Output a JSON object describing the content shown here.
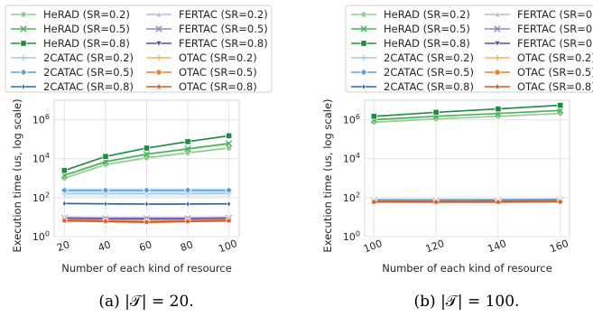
{
  "legend": [
    {
      "name": "HeRAD (SR=0.2)",
      "color": "#8fd18a",
      "marker": "circle"
    },
    {
      "name": "HeRAD (SR=0.5)",
      "color": "#4bb05c",
      "marker": "x"
    },
    {
      "name": "HeRAD (SR=0.8)",
      "color": "#1e8a3e",
      "marker": "square"
    },
    {
      "name": "2CATAC (SR=0.2)",
      "color": "#a6cbe8",
      "marker": "plus"
    },
    {
      "name": "2CATAC (SR=0.5)",
      "color": "#5c9fd6",
      "marker": "diamond"
    },
    {
      "name": "2CATAC (SR=0.8)",
      "color": "#2267b0",
      "marker": "thin_diamond"
    },
    {
      "name": "FERTAC (SR=0.2)",
      "color": "#b9b6dc",
      "marker": "triangle_up"
    },
    {
      "name": "FERTAC (SR=0.5)",
      "color": "#8e89c4",
      "marker": "x"
    },
    {
      "name": "FERTAC (SR=0.8)",
      "color": "#5a4aa0",
      "marker": "triangle_down"
    },
    {
      "name": "OTAC (SR=0.2)",
      "color": "#f6b26b",
      "marker": "plus"
    },
    {
      "name": "OTAC (SR=0.5)",
      "color": "#ef7f2a",
      "marker": "circle"
    },
    {
      "name": "OTAC (SR=0.8)",
      "color": "#d9531e",
      "marker": "star"
    }
  ],
  "chart_data": [
    {
      "type": "line",
      "caption": "(a) |𝒯| = 20.",
      "xlabel": "Number of each kind of resource",
      "ylabel": "Execution time (us, log scale)",
      "yscale": "log",
      "ylim": [
        1,
        10000000
      ],
      "yticks": [
        1,
        100,
        10000,
        1000000
      ],
      "ytick_labels": [
        "10^0",
        "10^2",
        "10^4",
        "10^6"
      ],
      "xlim": [
        15,
        105
      ],
      "x": [
        20,
        40,
        60,
        80,
        100
      ],
      "xtick_labels": [
        "20",
        "40",
        "60",
        "80",
        "100"
      ],
      "grid": true,
      "series": [
        {
          "name": "HeRAD (SR=0.2)",
          "values": [
            1000,
            5000,
            11000,
            20000,
            35000
          ],
          "band": 1.15
        },
        {
          "name": "HeRAD (SR=0.5)",
          "values": [
            1400,
            7000,
            17000,
            32000,
            60000
          ],
          "band": 1.15
        },
        {
          "name": "HeRAD (SR=0.8)",
          "values": [
            2500,
            13000,
            35000,
            75000,
            150000
          ],
          "band": 1.1
        },
        {
          "name": "2CATAC (SR=0.2)",
          "values": [
            160,
            160,
            160,
            160,
            165
          ],
          "band": 1.6
        },
        {
          "name": "2CATAC (SR=0.5)",
          "values": [
            240,
            240,
            240,
            240,
            240
          ],
          "band": 1.3
        },
        {
          "name": "2CATAC (SR=0.8)",
          "values": [
            50,
            48,
            47,
            47,
            48
          ],
          "band": 1.1
        },
        {
          "name": "FERTAC (SR=0.2)",
          "values": [
            10,
            9.5,
            9.5,
            9.5,
            10
          ],
          "band": 1.25
        },
        {
          "name": "FERTAC (SR=0.5)",
          "values": [
            9,
            8.5,
            8.5,
            8.5,
            9
          ],
          "band": 1.2
        },
        {
          "name": "FERTAC (SR=0.8)",
          "values": [
            8.5,
            8,
            8,
            8,
            8.5
          ],
          "band": 1.2
        },
        {
          "name": "OTAC (SR=0.2)",
          "values": [
            7.5,
            7,
            7,
            7,
            7.5
          ],
          "band": 1.2
        },
        {
          "name": "OTAC (SR=0.5)",
          "values": [
            7,
            6.5,
            6,
            6.5,
            7
          ],
          "band": 1.2
        },
        {
          "name": "OTAC (SR=0.8)",
          "values": [
            6.5,
            6,
            5.5,
            6,
            6.5
          ],
          "band": 1.15
        }
      ]
    },
    {
      "type": "line",
      "caption": "(b) |𝒯| = 100.",
      "xlabel": "Number of each kind of resource",
      "ylabel": "Execution time (us, log scale)",
      "yscale": "log",
      "ylim": [
        1,
        10000000
      ],
      "yticks": [
        1,
        100,
        10000,
        1000000
      ],
      "ytick_labels": [
        "10^0",
        "10^2",
        "10^4",
        "10^6"
      ],
      "xlim": [
        97,
        163
      ],
      "x": [
        100,
        120,
        140,
        160
      ],
      "xtick_labels": [
        "100",
        "120",
        "140",
        "160"
      ],
      "grid": true,
      "series": [
        {
          "name": "HeRAD (SR=0.2)",
          "values": [
            750000,
            1100000,
            1500000,
            2100000
          ],
          "band": 1.1
        },
        {
          "name": "HeRAD (SR=0.5)",
          "values": [
            1000000,
            1500000,
            2100000,
            3000000
          ],
          "band": 1.1
        },
        {
          "name": "HeRAD (SR=0.8)",
          "values": [
            1500000,
            2400000,
            3600000,
            5500000
          ],
          "band": 1.08
        },
        {
          "name": "2CATAC (SR=0.2)",
          "values": [
            80,
            80,
            80,
            82
          ],
          "band": 1.15
        },
        {
          "name": "2CATAC (SR=0.5)",
          "values": [
            75,
            75,
            76,
            78
          ],
          "band": 1.1
        },
        {
          "name": "2CATAC (SR=0.8)",
          "values": [
            72,
            72,
            73,
            75
          ],
          "band": 1.1
        },
        {
          "name": "FERTAC (SR=0.2)",
          "values": [
            70,
            70,
            71,
            73
          ],
          "band": 1.1
        },
        {
          "name": "FERTAC (SR=0.5)",
          "values": [
            68,
            68,
            69,
            71
          ],
          "band": 1.1
        },
        {
          "name": "FERTAC (SR=0.8)",
          "values": [
            66,
            66,
            67,
            69
          ],
          "band": 1.1
        },
        {
          "name": "OTAC (SR=0.2)",
          "values": [
            64,
            63,
            63,
            65
          ],
          "band": 1.08
        },
        {
          "name": "OTAC (SR=0.5)",
          "values": [
            62,
            61,
            61,
            63
          ],
          "band": 1.08
        },
        {
          "name": "OTAC (SR=0.8)",
          "values": [
            60,
            59,
            59,
            61
          ],
          "band": 1.08
        }
      ]
    }
  ]
}
